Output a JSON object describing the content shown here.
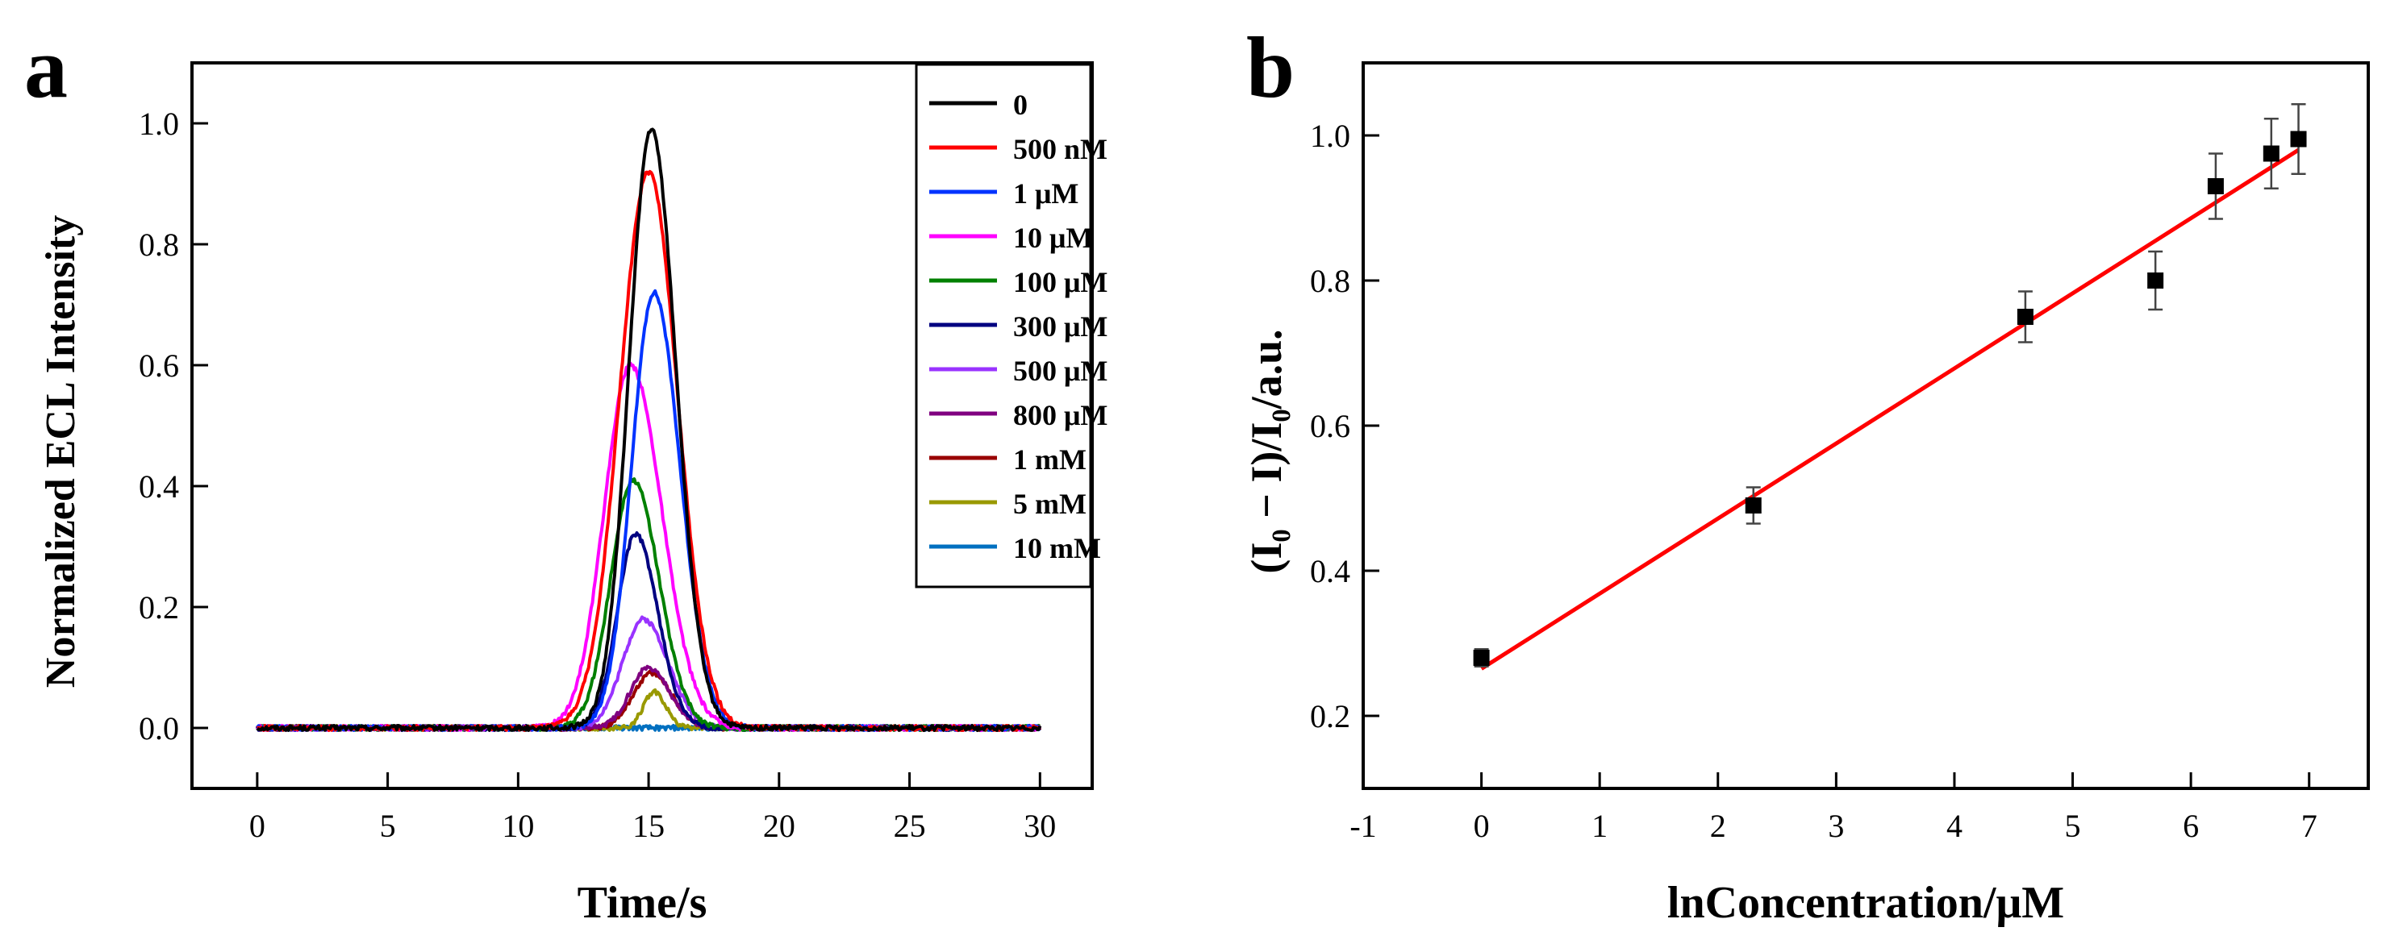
{
  "chart_data": [
    {
      "panel_label": "a",
      "type": "line",
      "xlabel": "Time/s",
      "ylabel": "Normalized ECL Intensity",
      "xlim": [
        -2.5,
        32
      ],
      "ylim": [
        -0.1,
        1.1
      ],
      "x_ticks": [
        0,
        5,
        10,
        15,
        20,
        25,
        30
      ],
      "y_ticks": [
        0.0,
        0.2,
        0.4,
        0.6,
        0.8,
        1.0
      ],
      "x_tick_labels": [
        "0",
        "5",
        "10",
        "15",
        "20",
        "25",
        "30"
      ],
      "y_tick_labels": [
        "0.0",
        "0.2",
        "0.4",
        "0.6",
        "0.8",
        "1.0"
      ],
      "grid": false,
      "legend_position": "top-right",
      "series": [
        {
          "name": "0",
          "color": "#000000",
          "peak_time": 15.1,
          "peak": 0.99,
          "rise_width": 0.85,
          "fall_width": 0.95
        },
        {
          "name": "500 nM",
          "color": "#ff0000",
          "peak_time": 15.0,
          "peak": 0.92,
          "rise_width": 1.1,
          "fall_width": 1.1
        },
        {
          "name": "1 μM",
          "color": "#0033ff",
          "peak_time": 15.2,
          "peak": 0.72,
          "rise_width": 0.85,
          "fall_width": 1.0
        },
        {
          "name": "10 μM",
          "color": "#ff00ff",
          "peak_time": 14.3,
          "peak": 0.6,
          "rise_width": 1.0,
          "fall_width": 1.2
        },
        {
          "name": "100 μM",
          "color": "#008000",
          "peak_time": 14.4,
          "peak": 0.41,
          "rise_width": 0.85,
          "fall_width": 1.0
        },
        {
          "name": "300 μM",
          "color": "#000080",
          "peak_time": 14.5,
          "peak": 0.32,
          "rise_width": 0.7,
          "fall_width": 0.85
        },
        {
          "name": "500 μM",
          "color": "#9933ff",
          "peak_time": 14.8,
          "peak": 0.18,
          "rise_width": 0.8,
          "fall_width": 0.95
        },
        {
          "name": "800 μM",
          "color": "#800080",
          "peak_time": 15.0,
          "peak": 0.1,
          "rise_width": 0.7,
          "fall_width": 0.8
        },
        {
          "name": "1 mM",
          "color": "#990000",
          "peak_time": 15.1,
          "peak": 0.09,
          "rise_width": 0.7,
          "fall_width": 0.8
        },
        {
          "name": "5 mM",
          "color": "#999900",
          "peak_time": 15.2,
          "peak": 0.06,
          "rise_width": 0.4,
          "fall_width": 0.45
        },
        {
          "name": "10 mM",
          "color": "#0070c0",
          "peak_time": 15.0,
          "peak": 0.0,
          "rise_width": 0.5,
          "fall_width": 0.5
        }
      ]
    },
    {
      "panel_label": "b",
      "type": "scatter",
      "xlabel": "lnConcentration/μM",
      "ylabel": "(I₀ − I)/I₀/a.u.",
      "xlim": [
        -1,
        7.5
      ],
      "ylim": [
        0.1,
        1.1
      ],
      "x_ticks": [
        -1,
        0,
        1,
        2,
        3,
        4,
        5,
        6,
        7
      ],
      "y_ticks": [
        0.2,
        0.4,
        0.6,
        0.8,
        1.0
      ],
      "x_tick_labels": [
        "-1",
        "0",
        "1",
        "2",
        "3",
        "4",
        "5",
        "6",
        "7"
      ],
      "y_tick_labels": [
        "0.2",
        "0.4",
        "0.6",
        "0.8",
        "1.0"
      ],
      "grid": false,
      "points": {
        "x": [
          0.0,
          2.3,
          4.6,
          5.7,
          6.21,
          6.68,
          6.91
        ],
        "y": [
          0.28,
          0.49,
          0.75,
          0.8,
          0.93,
          0.975,
          0.995
        ],
        "error": [
          0.012,
          0.025,
          0.035,
          0.04,
          0.045,
          0.048,
          0.048
        ],
        "color": "#000000"
      },
      "fit_line": {
        "x": [
          0.0,
          6.91
        ],
        "y": [
          0.265,
          0.98
        ],
        "color": "#ff0000"
      }
    }
  ]
}
